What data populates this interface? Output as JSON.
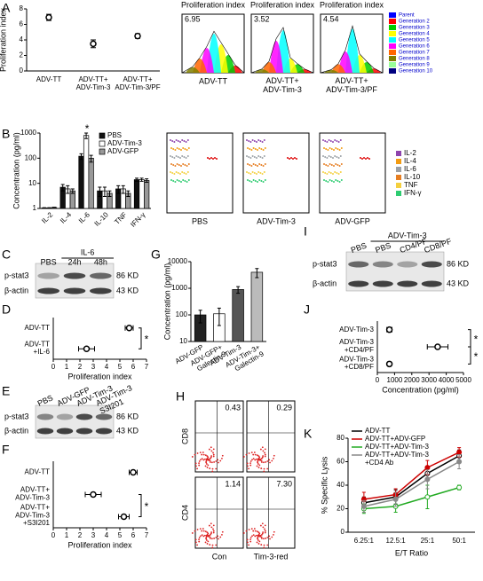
{
  "panel_labels": [
    "A",
    "B",
    "C",
    "D",
    "E",
    "F",
    "G",
    "H",
    "I",
    "J",
    "K"
  ],
  "chart_data": [
    {
      "type": "scatter",
      "ylabel": "Proliferation index",
      "categories": [
        "ADV-TT",
        "ADV-TT+\nADV-Tim-3",
        "ADV-TT+\nADV-Tim-3/PF"
      ],
      "values": [
        6.9,
        3.5,
        4.5
      ],
      "errors": [
        0.4,
        0.5,
        0.3
      ],
      "ylim": [
        0,
        8
      ],
      "yticks": [
        0,
        2,
        4,
        6,
        8
      ],
      "color": "#000000"
    },
    {
      "type": "bar",
      "log": true,
      "ylabel": "Concentration (pg/ml)",
      "categories": [
        "IL-2",
        "IL-4",
        "IL-6",
        "IL-10",
        "TNF",
        "IFN-γ"
      ],
      "series": [
        {
          "name": "PBS",
          "color": "#111111",
          "values": [
            1.05,
            7,
            120,
            5,
            6,
            14
          ],
          "errors": [
            0.02,
            2,
            30,
            2,
            2,
            2
          ]
        },
        {
          "name": "ADV-Tim-3",
          "color": "#ffffff",
          "values": [
            1.05,
            6,
            800,
            5,
            6,
            14
          ],
          "errors": [
            0.02,
            2,
            200,
            2,
            2,
            2
          ]
        },
        {
          "name": "ADV-GFP",
          "color": "#999999",
          "values": [
            1.1,
            5,
            100,
            4,
            4,
            13
          ],
          "errors": [
            0.02,
            1,
            30,
            1,
            1,
            2
          ]
        }
      ],
      "ylim": [
        1,
        1000
      ],
      "yticks": [
        1,
        10,
        100,
        1000
      ],
      "annotations": [
        "*"
      ]
    },
    {
      "type": "scatter",
      "horizontal": true,
      "xlabel": "Proliferation index",
      "categories": [
        "ADV-TT",
        "ADV-TT\n+IL-6"
      ],
      "values": [
        5.7,
        2.5
      ],
      "errors": [
        0.3,
        0.6
      ],
      "xlim": [
        0,
        7
      ],
      "xticks": [
        0,
        1,
        2,
        3,
        4,
        5,
        6,
        7
      ],
      "color": "#000000",
      "annotations": [
        "*"
      ]
    },
    {
      "type": "scatter",
      "horizontal": true,
      "xlabel": "Proliferation index",
      "categories": [
        "ADV-TT",
        "ADV-TT+\nADV-Tim-3",
        "ADV-TT+\nADV-Tim-3\n+S3I201"
      ],
      "values": [
        6.0,
        3.0,
        5.3
      ],
      "errors": [
        0.3,
        0.6,
        0.4
      ],
      "xlim": [
        0,
        7
      ],
      "xticks": [
        0,
        1,
        2,
        3,
        4,
        5,
        6,
        7
      ],
      "color": "#000000",
      "annotations": [
        "*"
      ]
    },
    {
      "type": "bar",
      "log": true,
      "ylabel": "Concentration (pg/ml)",
      "categories": [
        "ADV-GFP",
        "ADV-GFP+\nGalectin-9",
        "ADV-Tim-3",
        "ADV-Tim-3+\nGalectin-9"
      ],
      "values": [
        100,
        110,
        900,
        4000
      ],
      "errors": [
        50,
        70,
        250,
        1500
      ],
      "colors": [
        "#222222",
        "#ffffff",
        "#555555",
        "#bbbbbb"
      ],
      "ylim": [
        10,
        10000
      ],
      "yticks": [
        10,
        100,
        1000,
        10000
      ]
    },
    {
      "type": "scatter",
      "horizontal": true,
      "xlabel": "Concentration (pg/ml)",
      "categories": [
        "ADV-Tim-3",
        "ADV-Tim-3\n+CD4/PF",
        "ADV-Tim-3\n+CD8/PF"
      ],
      "values": [
        700,
        3500,
        700
      ],
      "errors": [
        150,
        600,
        100
      ],
      "xlim": [
        0,
        5000
      ],
      "xticks": [
        0,
        1000,
        2000,
        3000,
        4000,
        5000
      ],
      "color": "#000000",
      "annotations": [
        "*",
        "*"
      ]
    },
    {
      "type": "line",
      "ylabel": "% Specific Lysis",
      "xlabel": "E/T Ratio",
      "categories": [
        "6.25:1",
        "12.5:1",
        "25:1",
        "50:1"
      ],
      "series": [
        {
          "name": "ADV-TT",
          "color": "#000000",
          "values": [
            25,
            30,
            50,
            65
          ],
          "errors": [
            5,
            6,
            6,
            5
          ]
        },
        {
          "name": "ADV-TT+ADV-GFP",
          "color": "#cc0000",
          "values": [
            28,
            32,
            55,
            68
          ],
          "errors": [
            6,
            5,
            6,
            4
          ]
        },
        {
          "name": "ADV-TT+ADV-Tim-3",
          "color": "#22aa22",
          "values": [
            20,
            22,
            30,
            38
          ],
          "errors": [
            4,
            5,
            10,
            2
          ]
        },
        {
          "name": "ADV-TT+ADV-Tim-3\n+CD4 Ab",
          "color": "#888888",
          "values": [
            22,
            28,
            45,
            60
          ],
          "errors": [
            5,
            6,
            8,
            6
          ]
        }
      ],
      "ylim": [
        0,
        80
      ],
      "yticks": [
        0,
        20,
        40,
        60,
        80
      ]
    }
  ],
  "proliferation": {
    "title": "Proliferation index",
    "panels": [
      {
        "value": "6.95",
        "caption": "ADV-TT"
      },
      {
        "value": "3.52",
        "caption": "ADV-TT+\nADV-Tim-3"
      },
      {
        "value": "4.54",
        "caption": "ADV-TT+\nADV-Tim-3/PF"
      }
    ],
    "legend": [
      {
        "name": "Parent",
        "color": "#0000ff"
      },
      {
        "name": "Generation 2",
        "color": "#ff0000"
      },
      {
        "name": "Generation 3",
        "color": "#00cc00"
      },
      {
        "name": "Generation 4",
        "color": "#ffff00"
      },
      {
        "name": "Generation 5",
        "color": "#00ffff"
      },
      {
        "name": "Generation 6",
        "color": "#ff00ff"
      },
      {
        "name": "Generation 7",
        "color": "#ff6600"
      },
      {
        "name": "Generation 8",
        "color": "#808000"
      },
      {
        "name": "Generation 9",
        "color": "#99ff99"
      },
      {
        "name": "Generation 10",
        "color": "#000080"
      }
    ]
  },
  "bead_plots": {
    "captions": [
      "PBS",
      "ADV-Tim-3",
      "ADV-GFP"
    ],
    "legend": [
      {
        "name": "IL-2",
        "color": "#8e44ad"
      },
      {
        "name": "IL-4",
        "color": "#f39c12"
      },
      {
        "name": "IL-6",
        "color": "#9aa0a6"
      },
      {
        "name": "IL-10",
        "color": "#e67e22"
      },
      {
        "name": "TNF",
        "color": "#f4d03f"
      },
      {
        "name": "IFN-γ",
        "color": "#2ecc71"
      }
    ]
  },
  "blots": [
    {
      "header": "IL-6",
      "lanes": [
        "PBS",
        "24h",
        "48h"
      ],
      "rows": [
        {
          "name": "p-stat3",
          "size": "86 KD"
        },
        {
          "name": "β-actin",
          "size": "43 KD"
        }
      ]
    },
    {
      "lanes": [
        "PBS",
        "ADV-GFP",
        "ADV-Tim-3",
        "ADV-Tim-3\nS3I201"
      ],
      "rows": [
        {
          "name": "p-stat3",
          "size": "86 KD"
        },
        {
          "name": "β-actin",
          "size": "43 KD"
        }
      ]
    },
    {
      "header": "ADV-Tim-3",
      "lanes": [
        "PBS",
        "PBS",
        "CD4/PF",
        "CD8/PF"
      ],
      "rows": [
        {
          "name": "p-stat3",
          "size": "86 KD"
        },
        {
          "name": "β-actin",
          "size": "43 KD"
        }
      ]
    }
  ],
  "flow": {
    "values": [
      "0.43",
      "0.29",
      "1.14",
      "7.30"
    ],
    "y_labels": [
      "CD8",
      "CD4"
    ],
    "x_labels": [
      "Con",
      "Tim-3-red"
    ]
  }
}
